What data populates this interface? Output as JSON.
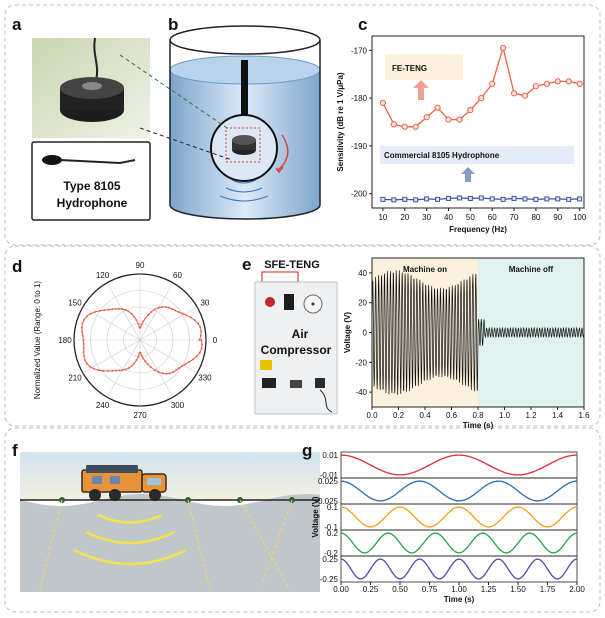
{
  "panels": {
    "a": {
      "letter": "a",
      "hydrophone_label_line1": "Type 8105",
      "hydrophone_label_line2": "Hydrophone"
    },
    "b": {
      "letter": "b"
    },
    "c": {
      "letter": "c"
    },
    "d": {
      "letter": "d"
    },
    "e": {
      "letter": "e",
      "device_label": "SFE-TENG",
      "machine_label_line1": "Air",
      "machine_label_line2": "Compressor"
    },
    "f": {
      "letter": "f"
    },
    "g": {
      "letter": "g"
    }
  },
  "chart_data": [
    {
      "id": "c",
      "type": "line",
      "xlabel": "Frequency (Hz)",
      "ylabel": "Sensitivity (dB re 1 V/μPa)",
      "xlim": [
        5,
        102
      ],
      "ylim": [
        -203,
        -167
      ],
      "xticks": [
        10,
        20,
        30,
        40,
        50,
        60,
        70,
        80,
        90,
        100
      ],
      "yticks": [
        -170,
        -180,
        -190,
        -200
      ],
      "legend_boxes": [
        "FE-TENG",
        "Commercial 8105 Hydrophone"
      ],
      "series": [
        {
          "name": "FE-TENG",
          "color": "#e8634a",
          "x": [
            10,
            15,
            20,
            25,
            30,
            35,
            40,
            45,
            50,
            55,
            60,
            65,
            70,
            75,
            80,
            85,
            90,
            95,
            100
          ],
          "y": [
            -181,
            -185.5,
            -186,
            -186,
            -184,
            -182,
            -184.5,
            -184.5,
            -182.5,
            -180,
            -177,
            -169.5,
            -179,
            -179.5,
            -177.5,
            -177,
            -176.5,
            -176.5,
            -177
          ]
        },
        {
          "name": "Commercial 8105 Hydrophone",
          "color": "#3a55a0",
          "x": [
            10,
            15,
            20,
            25,
            30,
            35,
            40,
            45,
            50,
            55,
            60,
            65,
            70,
            75,
            80,
            85,
            90,
            95,
            100
          ],
          "y": [
            -201.2,
            -201.3,
            -201.2,
            -201.3,
            -201.1,
            -201.2,
            -201,
            -200.9,
            -201,
            -200.9,
            -201.1,
            -201.2,
            -201,
            -201.1,
            -201.2,
            -201.1,
            -201.1,
            -201.2,
            -201.1
          ]
        }
      ]
    },
    {
      "id": "d",
      "type": "polar",
      "ylabel": "Normalized Value (Range: 0 to 1)",
      "angle_ticks": [
        0,
        30,
        60,
        90,
        120,
        150,
        180,
        210,
        240,
        270,
        300,
        330
      ],
      "color": "#e8634a",
      "description_function": "r(θ) ≈ 0.25 + 0.7·|cos θ|"
    },
    {
      "id": "e",
      "type": "line",
      "xlabel": "Time (s)",
      "ylabel": "Voltage (V)",
      "xlim": [
        0,
        1.6
      ],
      "ylim": [
        -50,
        50
      ],
      "xticks": [
        0.0,
        0.2,
        0.4,
        0.6,
        0.8,
        1.0,
        1.2,
        1.4,
        1.6
      ],
      "yticks": [
        40,
        20,
        0,
        -20,
        -40
      ],
      "regions": [
        {
          "label": "Machine on",
          "x": [
            0,
            0.8
          ],
          "color": "#fdf1de"
        },
        {
          "label": "Machine off",
          "x": [
            0.8,
            1.6
          ],
          "color": "#dff2ef"
        }
      ]
    },
    {
      "id": "g",
      "type": "line",
      "xlabel": "Time (s)",
      "ylabel": "Voltage (V)",
      "xlim": [
        0,
        2
      ],
      "xticks": [
        0.0,
        0.25,
        0.5,
        0.75,
        1.0,
        1.25,
        1.5,
        1.75,
        2.0
      ],
      "series": [
        {
          "name": "",
          "color": "#e02d3c",
          "amplitude": 0.01,
          "frequency": 1.0,
          "yticks": [
            "0.01",
            "-0.01"
          ]
        },
        {
          "name": "",
          "color": "#2f6db0",
          "amplitude": 0.025,
          "frequency": 1.5,
          "yticks": [
            "0.025",
            "-0.025"
          ]
        },
        {
          "name": "",
          "color": "#f0a020",
          "amplitude": 0.1,
          "frequency": 2.0,
          "yticks": [
            "0.1",
            "-0.1"
          ]
        },
        {
          "name": "",
          "color": "#22a64a",
          "amplitude": 0.2,
          "frequency": 2.5,
          "yticks": [
            "0.2",
            "-0.2"
          ]
        },
        {
          "name": "",
          "color": "#5a4aa8",
          "amplitude": 0.25,
          "frequency": 3.0,
          "yticks": [
            "0.25",
            "-0.25"
          ]
        }
      ]
    }
  ]
}
